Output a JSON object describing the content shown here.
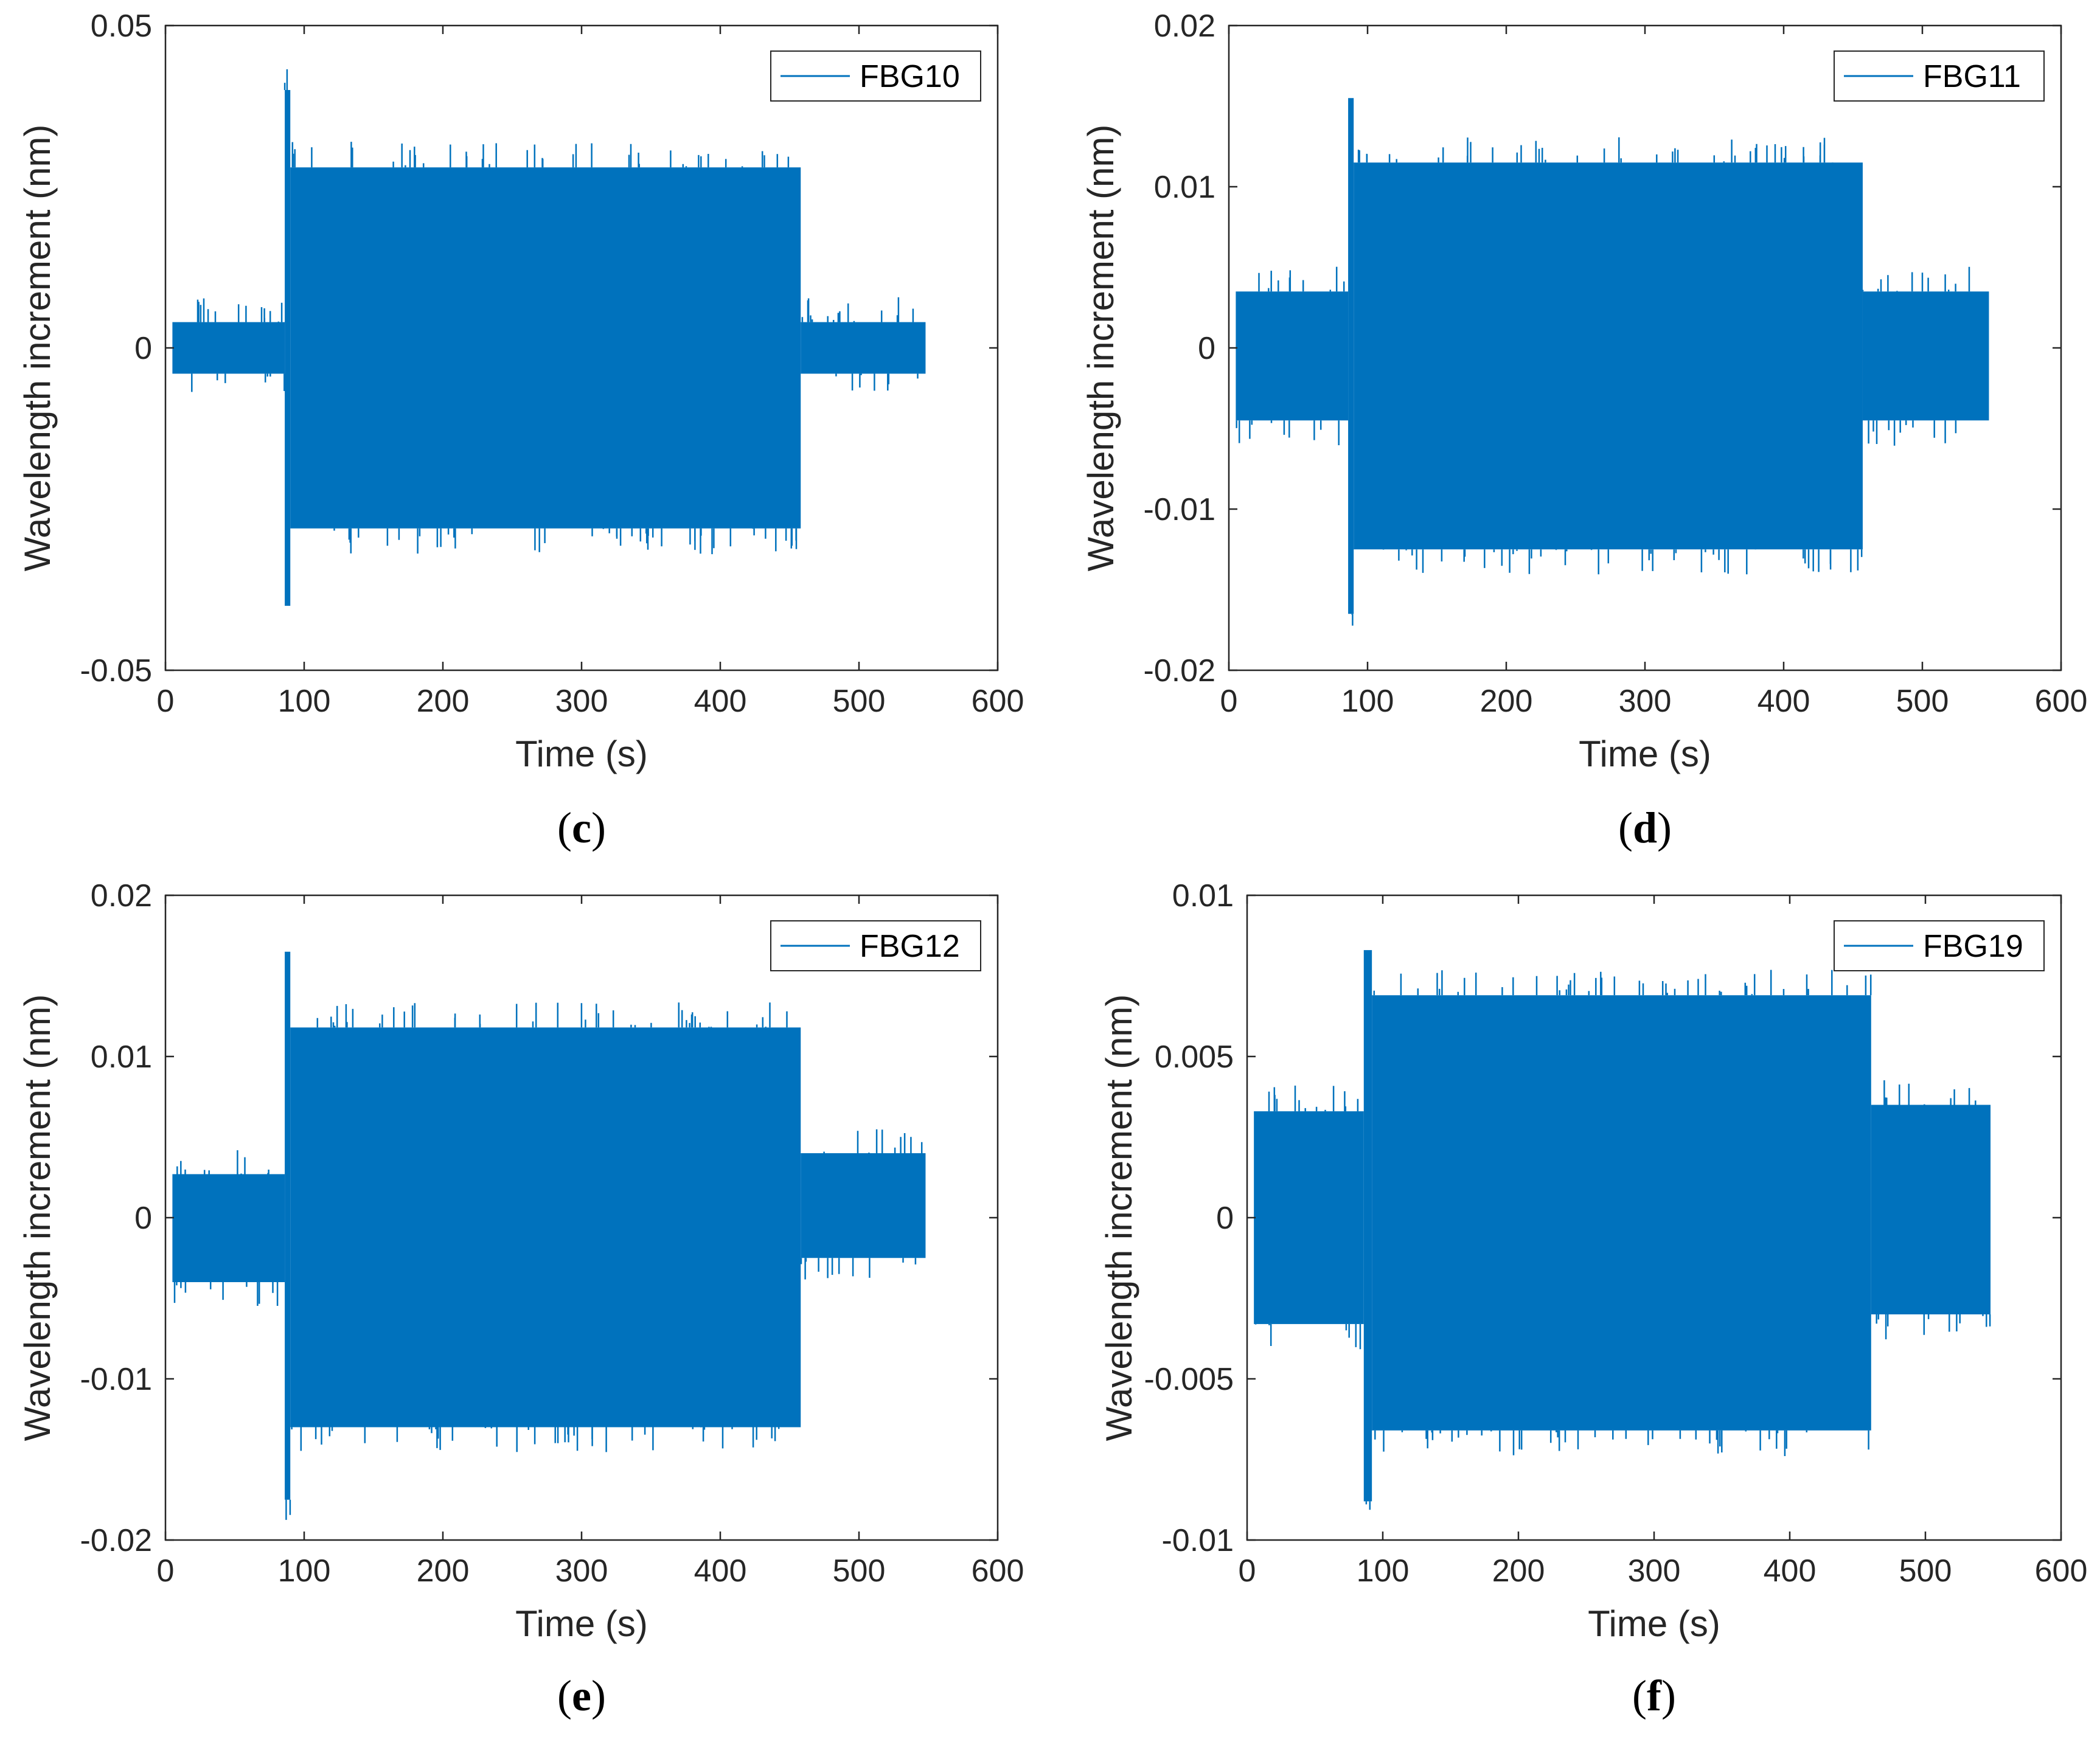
{
  "figure": {
    "panels_description_note": "Four FBG wavelength increment time series"
  },
  "chart_data": [
    {
      "type": "line",
      "panel": "c",
      "caption": {
        "open": "(",
        "letter": "c",
        "close": ")"
      },
      "legend": "FBG10",
      "xlabel": "Time (s)",
      "ylabel": "Wavelength increment (nm)",
      "xlim": [
        0,
        600
      ],
      "ylim": [
        -0.05,
        0.05
      ],
      "xticks": [
        0,
        100,
        200,
        300,
        400,
        500,
        600
      ],
      "xtick_labels": [
        "0",
        "100",
        "200",
        "300",
        "400",
        "500",
        "600"
      ],
      "yticks": [
        -0.05,
        0,
        0.05
      ],
      "ytick_labels": [
        "-0.05",
        "0",
        "0.05"
      ],
      "color": "#0072BD",
      "segments": [
        {
          "x_start": 5,
          "x_end": 86,
          "low": -0.004,
          "high": 0.004
        },
        {
          "x_start": 86,
          "x_end": 90,
          "low": -0.04,
          "high": 0.04
        },
        {
          "x_start": 90,
          "x_end": 458,
          "low": -0.028,
          "high": 0.028
        },
        {
          "x_start": 458,
          "x_end": 548,
          "low": -0.004,
          "high": 0.004
        }
      ]
    },
    {
      "type": "line",
      "panel": "d",
      "caption": {
        "open": "(",
        "letter": "d",
        "close": ")"
      },
      "legend": "FBG11",
      "xlabel": "Time (s)",
      "ylabel": "Wavelength increment (nm)",
      "xlim": [
        0,
        600
      ],
      "ylim": [
        -0.02,
        0.02
      ],
      "xticks": [
        0,
        100,
        200,
        300,
        400,
        500,
        600
      ],
      "xtick_labels": [
        "0",
        "100",
        "200",
        "300",
        "400",
        "500",
        "600"
      ],
      "yticks": [
        -0.02,
        -0.01,
        0,
        0.01,
        0.02
      ],
      "ytick_labels": [
        "-0.02",
        "-0.01",
        "0",
        "0.01",
        "0.02"
      ],
      "color": "#0072BD",
      "segments": [
        {
          "x_start": 5,
          "x_end": 86,
          "low": -0.0045,
          "high": 0.0035
        },
        {
          "x_start": 86,
          "x_end": 90,
          "low": -0.0165,
          "high": 0.0155
        },
        {
          "x_start": 90,
          "x_end": 457,
          "low": -0.0125,
          "high": 0.0115
        },
        {
          "x_start": 457,
          "x_end": 548,
          "low": -0.0045,
          "high": 0.0035
        }
      ]
    },
    {
      "type": "line",
      "panel": "e",
      "caption": {
        "open": "(",
        "letter": "e",
        "close": ")"
      },
      "legend": "FBG12",
      "xlabel": "Time (s)",
      "ylabel": "Wavelength increment (nm)",
      "xlim": [
        0,
        600
      ],
      "ylim": [
        -0.02,
        0.02
      ],
      "xticks": [
        0,
        100,
        200,
        300,
        400,
        500,
        600
      ],
      "xtick_labels": [
        "0",
        "100",
        "200",
        "300",
        "400",
        "500",
        "600"
      ],
      "yticks": [
        -0.02,
        -0.01,
        0,
        0.01,
        0.02
      ],
      "ytick_labels": [
        "-0.02",
        "-0.01",
        "0",
        "0.01",
        "0.02"
      ],
      "color": "#0072BD",
      "segments": [
        {
          "x_start": 5,
          "x_end": 86,
          "low": -0.004,
          "high": 0.0027
        },
        {
          "x_start": 86,
          "x_end": 90,
          "low": -0.0175,
          "high": 0.0165
        },
        {
          "x_start": 90,
          "x_end": 458,
          "low": -0.013,
          "high": 0.0118
        },
        {
          "x_start": 458,
          "x_end": 548,
          "low": -0.0025,
          "high": 0.004
        }
      ]
    },
    {
      "type": "line",
      "panel": "f",
      "caption": {
        "open": "(",
        "letter": "f",
        "close": ")"
      },
      "legend": "FBG19",
      "xlabel": "Time (s)",
      "ylabel": "Wavelength increment (nm)",
      "xlim": [
        0,
        600
      ],
      "ylim": [
        -0.01,
        0.01
      ],
      "xticks": [
        0,
        100,
        200,
        300,
        400,
        500,
        600
      ],
      "xtick_labels": [
        "0",
        "100",
        "200",
        "300",
        "400",
        "500",
        "600"
      ],
      "yticks": [
        -0.01,
        -0.005,
        0,
        0.005,
        0.01
      ],
      "ytick_labels": [
        "-0.01",
        "-0.005",
        "0",
        "0.005",
        "0.01"
      ],
      "color": "#0072BD",
      "segments": [
        {
          "x_start": 5,
          "x_end": 86,
          "low": -0.0033,
          "high": 0.0033
        },
        {
          "x_start": 86,
          "x_end": 92,
          "low": -0.0088,
          "high": 0.0083
        },
        {
          "x_start": 92,
          "x_end": 460,
          "low": -0.0066,
          "high": 0.0069
        },
        {
          "x_start": 460,
          "x_end": 548,
          "low": -0.003,
          "high": 0.0035
        }
      ]
    }
  ]
}
